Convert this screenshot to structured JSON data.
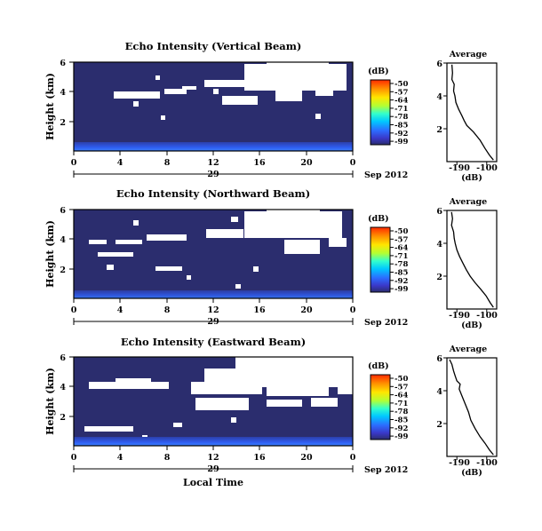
{
  "chart_data": [
    {
      "type": "heatmap",
      "panel": "vertical",
      "title": "Echo Intensity (Vertical Beam)",
      "ylabel": "Height (km)",
      "xlabel": "",
      "x_ticks": [
        "0",
        "4",
        "8",
        "12",
        "16",
        "20",
        "0"
      ],
      "y_ticks": [
        "6",
        "4",
        "2"
      ],
      "date_center_label": "29",
      "date_right_label": "Sep 2012",
      "xlim_hours": [
        0,
        24
      ],
      "ylim_km": [
        0,
        6
      ],
      "colorbar": {
        "unit": "(dB)",
        "ticks": [
          "-50",
          "-57",
          "-64",
          "-71",
          "-78",
          "-85",
          "-92",
          "-99"
        ]
      },
      "approx_rows_km": [
        {
          "height_km": 0.25,
          "dB": -85
        },
        {
          "height_km": 0.75,
          "dB": -96
        },
        {
          "height_km": 3.0,
          "dB": -99
        },
        {
          "height_km": 5.0,
          "dB": -99
        }
      ]
    },
    {
      "type": "heatmap",
      "panel": "northward",
      "title": "Echo Intensity (Northward Beam)",
      "ylabel": "Height (km)",
      "xlabel": "",
      "x_ticks": [
        "0",
        "4",
        "8",
        "12",
        "16",
        "20",
        "0"
      ],
      "y_ticks": [
        "6",
        "4",
        "2"
      ],
      "date_center_label": "29",
      "date_right_label": "Sep 2012",
      "xlim_hours": [
        0,
        24
      ],
      "ylim_km": [
        0,
        6
      ],
      "colorbar": {
        "unit": "(dB)",
        "ticks": [
          "-50",
          "-57",
          "-64",
          "-71",
          "-78",
          "-85",
          "-92",
          "-99"
        ]
      },
      "approx_rows_km": [
        {
          "height_km": 0.25,
          "dB": -88
        },
        {
          "height_km": 0.75,
          "dB": -97
        },
        {
          "height_km": 3.0,
          "dB": -99
        },
        {
          "height_km": 5.0,
          "dB": -99
        }
      ]
    },
    {
      "type": "heatmap",
      "panel": "eastward",
      "title": "Echo Intensity (Eastward Beam)",
      "ylabel": "Height (km)",
      "xlabel": "Local Time",
      "x_ticks": [
        "0",
        "4",
        "8",
        "12",
        "16",
        "20",
        "0"
      ],
      "y_ticks": [
        "6",
        "4",
        "2"
      ],
      "date_center_label": "29",
      "date_right_label": "Sep 2012",
      "xlim_hours": [
        0,
        24
      ],
      "ylim_km": [
        0,
        6
      ],
      "colorbar": {
        "unit": "(dB)",
        "ticks": [
          "-50",
          "-57",
          "-64",
          "-71",
          "-78",
          "-85",
          "-92",
          "-99"
        ]
      },
      "approx_rows_km": [
        {
          "height_km": 0.25,
          "dB": -85
        },
        {
          "height_km": 0.75,
          "dB": -96
        },
        {
          "height_km": 3.0,
          "dB": -99
        },
        {
          "height_km": 5.0,
          "dB": -99
        }
      ]
    },
    {
      "type": "line",
      "panel": "vertical-average",
      "title": "Average",
      "xlabel": "(dB)",
      "x_ticks": [
        "-190",
        "-100"
      ],
      "y_ticks": [
        "6",
        "4",
        "2"
      ],
      "xlim": [
        -220,
        -70
      ],
      "ylim": [
        0,
        6
      ],
      "x": [
        -205,
        -203,
        -205,
        -198,
        -200,
        -196,
        -193,
        -185,
        -175,
        -168,
        -160,
        -140,
        -120,
        -105,
        -92,
        -80
      ],
      "y": [
        5.9,
        5.4,
        5.0,
        4.7,
        4.3,
        4.0,
        3.6,
        3.2,
        2.8,
        2.5,
        2.2,
        1.8,
        1.3,
        0.8,
        0.4,
        0.1
      ]
    },
    {
      "type": "line",
      "panel": "northward-average",
      "title": "Average",
      "xlabel": "(dB)",
      "x_ticks": [
        "-190",
        "-100"
      ],
      "y_ticks": [
        "6",
        "4",
        "2"
      ],
      "xlim": [
        -220,
        -70
      ],
      "ylim": [
        0,
        6
      ],
      "x": [
        -206,
        -203,
        -206,
        -200,
        -198,
        -195,
        -190,
        -182,
        -172,
        -162,
        -150,
        -135,
        -118,
        -102,
        -90,
        -80
      ],
      "y": [
        5.9,
        5.5,
        5.1,
        4.7,
        4.3,
        4.0,
        3.6,
        3.2,
        2.8,
        2.4,
        2.0,
        1.6,
        1.2,
        0.8,
        0.4,
        0.1
      ]
    },
    {
      "type": "line",
      "panel": "eastward-average",
      "title": "Average",
      "xlabel": "(dB)",
      "x_ticks": [
        "-190",
        "-100"
      ],
      "y_ticks": [
        "6",
        "4",
        "2"
      ],
      "xlim": [
        -220,
        -70
      ],
      "ylim": [
        0,
        6
      ],
      "x": [
        -212,
        -205,
        -200,
        -195,
        -190,
        -180,
        -183,
        -175,
        -165,
        -155,
        -148,
        -135,
        -120,
        -105,
        -92,
        -80
      ],
      "y": [
        5.9,
        5.6,
        5.2,
        4.9,
        4.6,
        4.4,
        4.1,
        3.7,
        3.2,
        2.7,
        2.2,
        1.7,
        1.2,
        0.8,
        0.4,
        0.1
      ]
    }
  ],
  "colors": {
    "background_low": "#2b2d6e",
    "white_gap": "#ffffff",
    "colormap": [
      "#ff2a00",
      "#ff8c00",
      "#ffe600",
      "#b3ff33",
      "#33ffcc",
      "#00c8ff",
      "#2c6cff",
      "#3a38c8",
      "#2b2d6e"
    ]
  }
}
